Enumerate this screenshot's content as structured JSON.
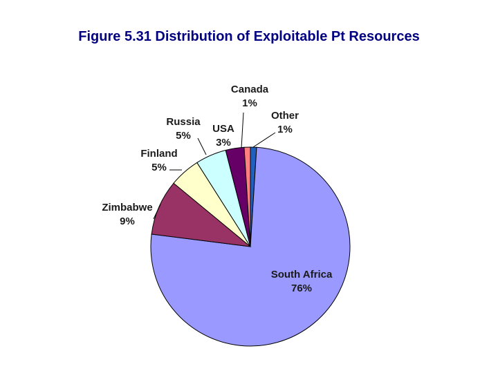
{
  "chart_data": {
    "type": "pie",
    "title": "Figure 5.31 Distribution of Exploitable Pt Resources",
    "slices": [
      {
        "name": "Other",
        "value": 1,
        "label": "1%",
        "color": "#1f5fc0"
      },
      {
        "name": "South Africa",
        "value": 76,
        "label": "76%",
        "color": "#9999ff"
      },
      {
        "name": "Zimbabwe",
        "value": 9,
        "label": "9%",
        "color": "#993366"
      },
      {
        "name": "Finland",
        "value": 5,
        "label": "5%",
        "color": "#ffffcc"
      },
      {
        "name": "Russia",
        "value": 5,
        "label": "5%",
        "color": "#ccffff"
      },
      {
        "name": "USA",
        "value": 3,
        "label": "3%",
        "color": "#660066"
      },
      {
        "name": "Canada",
        "value": 1,
        "label": "1%",
        "color": "#ff8080"
      }
    ],
    "legend": "none"
  }
}
